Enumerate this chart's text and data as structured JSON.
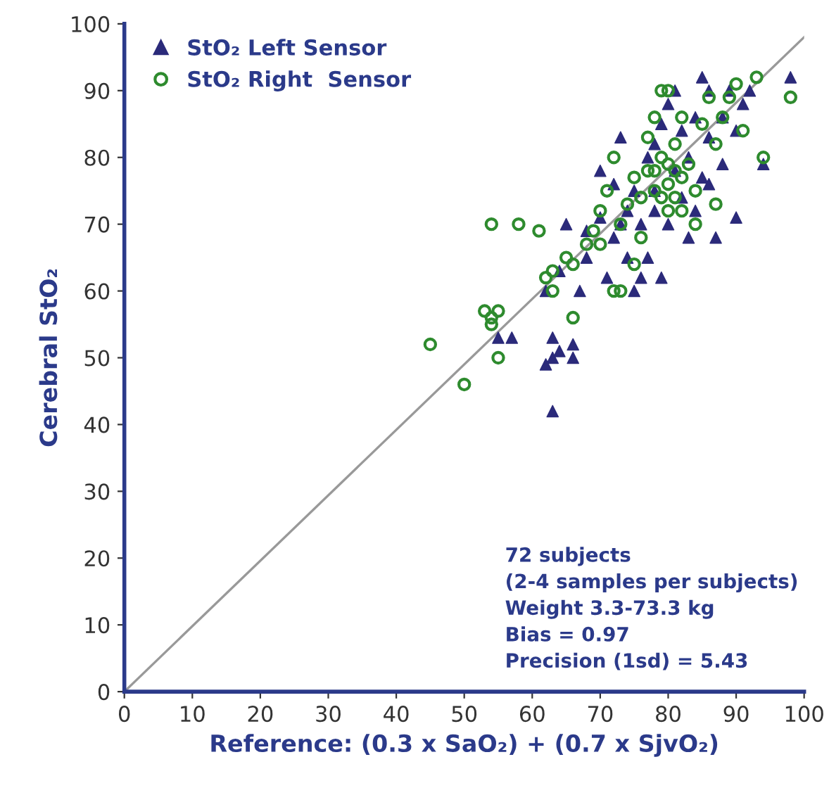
{
  "chart_data": {
    "type": "scatter",
    "xlabel": "Reference: (0.3 x SaO₂) + (0.7 x SjvO₂)",
    "ylabel": "Cerebral StO₂",
    "xlim": [
      0,
      100
    ],
    "ylim": [
      0,
      100
    ],
    "xticks": [
      0,
      10,
      20,
      30,
      40,
      50,
      60,
      70,
      80,
      90,
      100
    ],
    "yticks": [
      0,
      10,
      20,
      30,
      40,
      50,
      60,
      70,
      80,
      90,
      100
    ],
    "grid": false,
    "legend": "top left",
    "annotations": [
      "72 subjects",
      "(2-4 samples per subjects)",
      "Weight 3.3-73.3 kg",
      "Bias = 0.97",
      "Precision (1sd) = 5.43"
    ],
    "series": [
      {
        "name": "StO₂ Left Sensor",
        "color": "#2b2a7a",
        "marker": "triangle",
        "x": [
          63,
          62,
          63,
          64,
          63,
          66,
          55,
          57,
          66,
          67,
          68,
          62,
          64,
          65,
          68,
          70,
          71,
          72,
          73,
          74,
          75,
          76,
          76,
          77,
          77,
          78,
          78,
          79,
          80,
          80,
          81,
          82,
          82,
          83,
          84,
          84,
          85,
          86,
          86,
          87,
          88,
          88,
          89,
          90,
          90,
          91,
          94,
          98,
          75,
          79,
          73,
          72,
          81,
          85,
          83,
          78,
          74,
          70,
          86,
          92
        ],
        "values": [
          42,
          49,
          50,
          51,
          53,
          52,
          53,
          53,
          50,
          60,
          65,
          60,
          63,
          70,
          69,
          78,
          62,
          68,
          70,
          72,
          75,
          70,
          62,
          65,
          80,
          82,
          75,
          85,
          70,
          88,
          78,
          74,
          84,
          80,
          86,
          72,
          77,
          83,
          90,
          68,
          86,
          79,
          90,
          84,
          71,
          88,
          79,
          92,
          60,
          62,
          83,
          76,
          90,
          92,
          68,
          72,
          65,
          71,
          76,
          90
        ]
      },
      {
        "name": "StO₂ Right  Sensor",
        "color": "#2e8b2e",
        "marker": "circle",
        "x": [
          45,
          50,
          53,
          54,
          54,
          55,
          55,
          54,
          58,
          61,
          62,
          63,
          63,
          65,
          66,
          66,
          68,
          69,
          70,
          71,
          72,
          73,
          73,
          74,
          75,
          76,
          77,
          78,
          78,
          79,
          79,
          80,
          80,
          81,
          81,
          82,
          82,
          83,
          84,
          85,
          86,
          87,
          88,
          89,
          90,
          94,
          98,
          91,
          76,
          80,
          84,
          77,
          70,
          75,
          82,
          78,
          80,
          79,
          81,
          72,
          87,
          93
        ],
        "values": [
          52,
          46,
          57,
          56,
          55,
          57,
          50,
          70,
          70,
          69,
          62,
          60,
          63,
          65,
          56,
          64,
          67,
          69,
          72,
          75,
          60,
          60,
          70,
          73,
          77,
          74,
          78,
          75,
          86,
          80,
          90,
          90,
          76,
          74,
          82,
          77,
          86,
          79,
          75,
          85,
          89,
          82,
          86,
          89,
          91,
          80,
          89,
          84,
          68,
          72,
          70,
          83,
          67,
          64,
          72,
          78,
          79,
          74,
          78,
          80,
          73,
          92
        ]
      },
      {
        "type": "line",
        "color": "#999999",
        "line_style": "solid",
        "marker": "none",
        "x": [
          0,
          100
        ],
        "values": [
          0,
          98
        ]
      }
    ]
  }
}
